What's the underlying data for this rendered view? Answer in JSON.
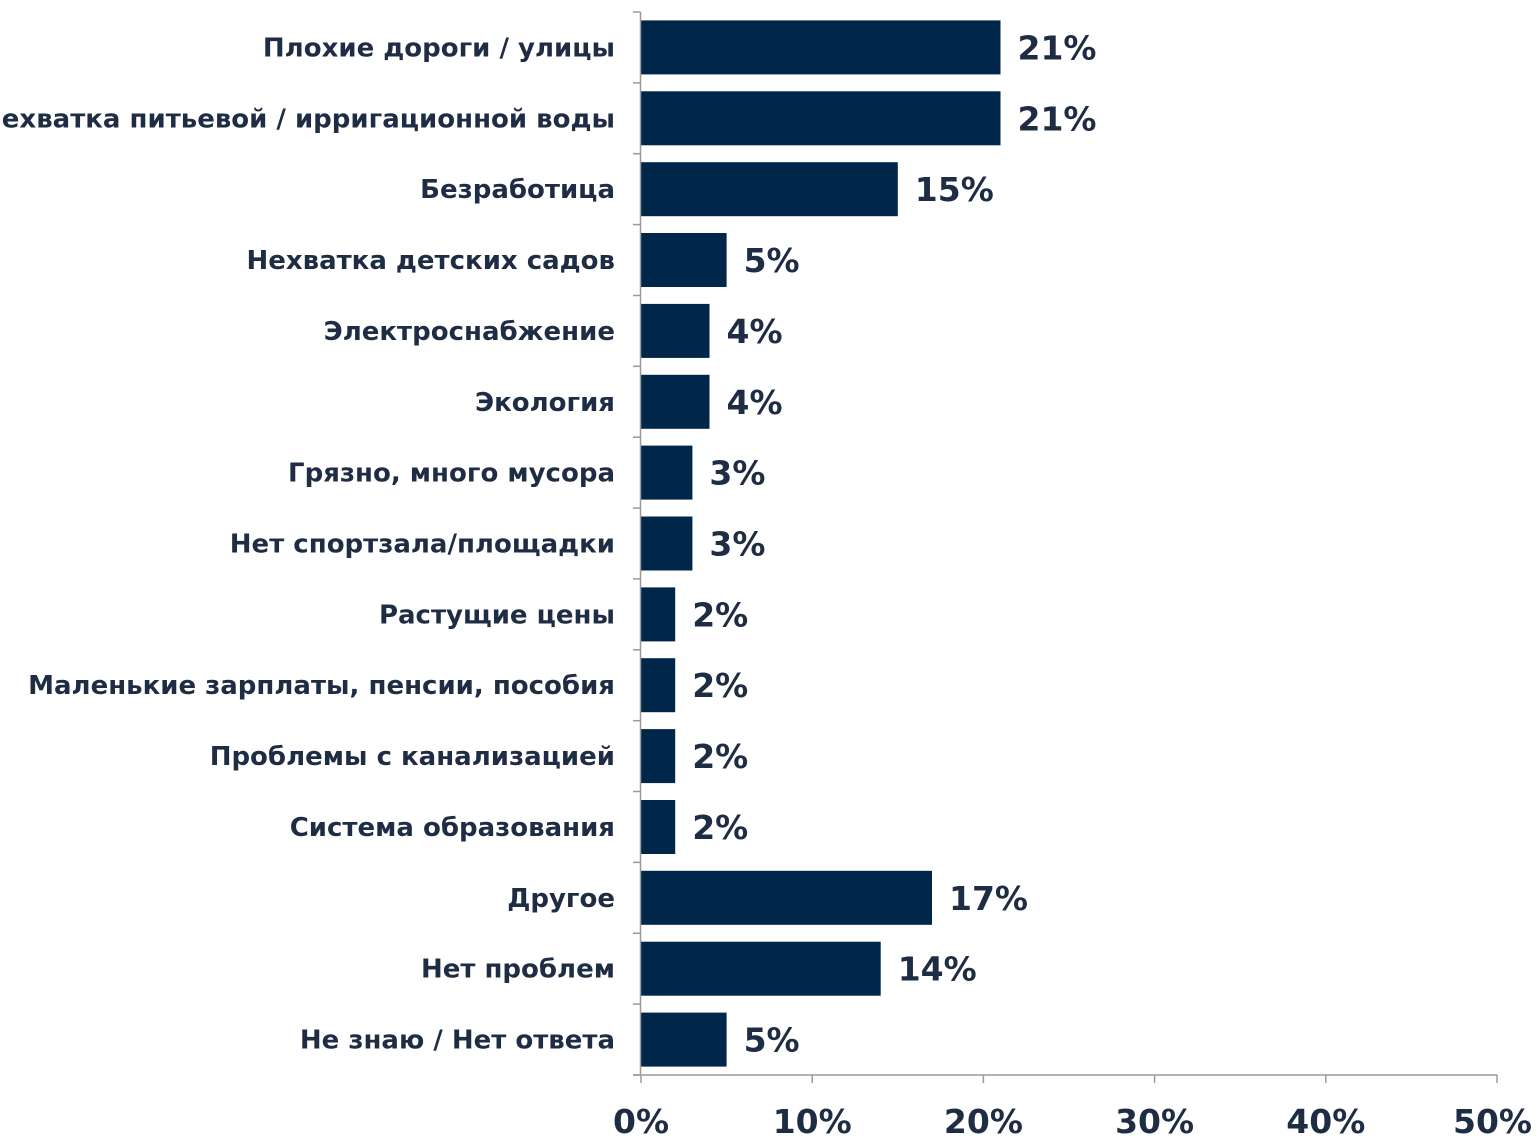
{
  "chart_data": {
    "type": "bar",
    "orientation": "horizontal",
    "categories": [
      "Плохие дороги / улицы",
      "Нехватка питьевой / ирригационной воды",
      "Безработица",
      "Нехватка детских садов",
      "Электроснабжение",
      "Экология",
      "Грязно, много мусора",
      "Нет спортзала/площадки",
      "Растущие цены",
      "Маленькие зарплаты, пенсии, пособия",
      "Проблемы с канализацией",
      "Система образования",
      "Другое",
      "Нет проблем",
      "Не знаю / Нет ответа"
    ],
    "values": [
      21,
      21,
      15,
      5,
      4,
      4,
      3,
      3,
      2,
      2,
      2,
      2,
      17,
      14,
      5
    ],
    "value_labels": [
      "21%",
      "21%",
      "15%",
      "5%",
      "4%",
      "4%",
      "3%",
      "3%",
      "2%",
      "2%",
      "2%",
      "2%",
      "17%",
      "14%",
      "5%"
    ],
    "xlim": [
      0,
      50
    ],
    "x_ticks": [
      0,
      10,
      20,
      30,
      40,
      50
    ],
    "x_tick_labels": [
      "0%",
      "10%",
      "20%",
      "30%",
      "40%",
      "50%"
    ],
    "bar_color": "#00264a",
    "grid": false,
    "legend": "none"
  }
}
